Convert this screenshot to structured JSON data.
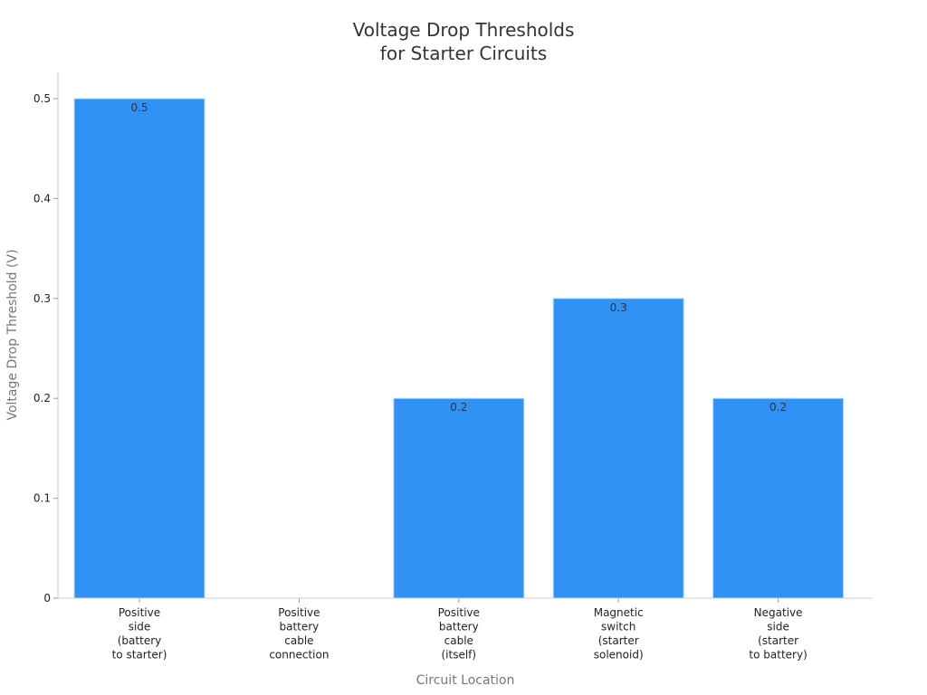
{
  "chart_data": {
    "type": "bar",
    "title": [
      "Voltage Drop Thresholds",
      "for Starter Circuits"
    ],
    "xlabel": "Circuit Location",
    "ylabel": "Voltage Drop Threshold (V)",
    "categories": [
      [
        "Positive",
        "side",
        "(battery",
        "to starter)"
      ],
      [
        "Positive",
        "battery",
        "cable",
        "connection"
      ],
      [
        "Positive",
        "battery",
        "cable",
        "(itself)"
      ],
      [
        "Magnetic",
        "switch",
        "(starter",
        "solenoid)"
      ],
      [
        "Negative",
        "side",
        "(starter",
        "to battery)"
      ]
    ],
    "values": [
      0.5,
      null,
      0.2,
      0.3,
      0.2
    ],
    "data_labels": [
      "0.5",
      "",
      "0.2",
      "0.3",
      "0.2"
    ],
    "ylim": [
      0,
      0.525
    ],
    "yticks": [
      0,
      0.1,
      0.2,
      0.3,
      0.4,
      0.5
    ],
    "ytick_labels": [
      "0",
      "0.1",
      "0.2",
      "0.3",
      "0.4",
      "0.5"
    ],
    "grid": false,
    "legend": "none",
    "colors": {
      "bar": "#2f92f4",
      "bar_edge": "#bcd9f7",
      "axis": "#cccccc"
    }
  }
}
